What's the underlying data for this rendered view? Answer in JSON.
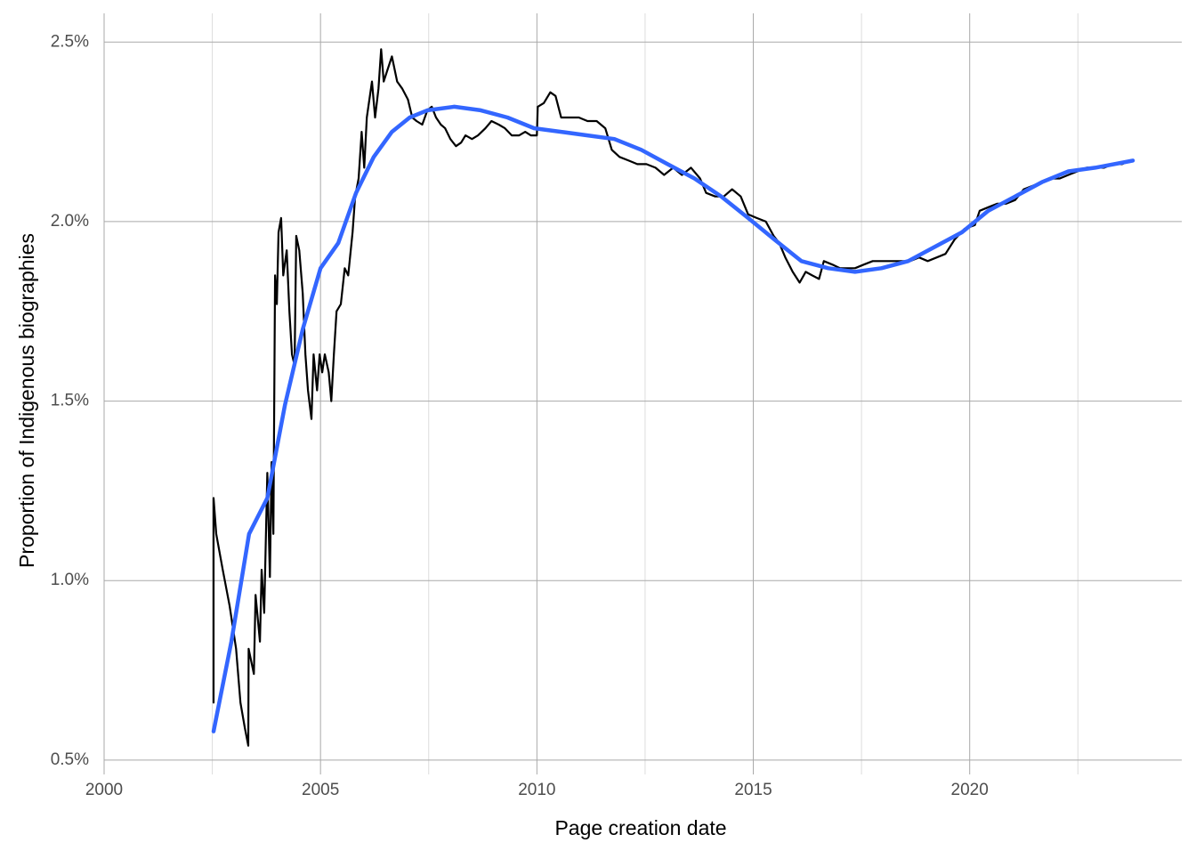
{
  "chart_data": {
    "type": "line",
    "x_label": "Page creation date",
    "y_label": "Proportion of Indigenous biographies",
    "xlim": [
      2000,
      2024.9
    ],
    "ylim": [
      0.46,
      2.58
    ],
    "xticks": [
      2000,
      2005,
      2010,
      2015,
      2020
    ],
    "xminorticks": [
      2002.5,
      2007.5,
      2012.5,
      2017.5,
      2022.5
    ],
    "yticks": [
      {
        "value": 0.5,
        "label": "0.5%"
      },
      {
        "value": 1.0,
        "label": "1.0%"
      },
      {
        "value": 1.5,
        "label": "1.5%"
      },
      {
        "value": 2.0,
        "label": "2.0%"
      },
      {
        "value": 2.5,
        "label": "2.5%"
      }
    ],
    "grid": true,
    "series": [
      {
        "color": "#000000",
        "x": [
          2002.53,
          2002.53,
          2002.59,
          2002.74,
          2002.9,
          2003.05,
          2003.15,
          2003.25,
          2003.33,
          2003.34,
          2003.46,
          2003.5,
          2003.6,
          2003.64,
          2003.7,
          2003.77,
          2003.83,
          2003.87,
          2003.91,
          2003.95,
          2003.99,
          2004.03,
          2004.09,
          2004.14,
          2004.22,
          2004.28,
          2004.34,
          2004.4,
          2004.44,
          2004.51,
          2004.59,
          2004.65,
          2004.71,
          2004.79,
          2004.84,
          2004.92,
          2004.98,
          2005.04,
          2005.1,
          2005.19,
          2005.25,
          2005.31,
          2005.37,
          2005.47,
          2005.56,
          2005.64,
          2005.74,
          2005.8,
          2005.88,
          2005.95,
          2006.01,
          2006.07,
          2006.13,
          2006.19,
          2006.26,
          2006.34,
          2006.4,
          2006.46,
          2006.54,
          2006.65,
          2006.77,
          2006.89,
          2007.02,
          2007.12,
          2007.22,
          2007.35,
          2007.47,
          2007.57,
          2007.67,
          2007.78,
          2007.88,
          2008.0,
          2008.13,
          2008.25,
          2008.35,
          2008.5,
          2008.64,
          2008.81,
          2008.95,
          2009.12,
          2009.26,
          2009.42,
          2009.59,
          2009.73,
          2009.86,
          2010.0,
          2010.02,
          2010.16,
          2010.31,
          2010.43,
          2010.56,
          2010.76,
          2010.97,
          2011.17,
          2011.38,
          2011.58,
          2011.73,
          2011.91,
          2012.12,
          2012.32,
          2012.53,
          2012.74,
          2012.94,
          2013.15,
          2013.35,
          2013.56,
          2013.77,
          2013.91,
          2014.12,
          2014.32,
          2014.51,
          2014.71,
          2014.88,
          2015.08,
          2015.29,
          2015.47,
          2015.6,
          2015.74,
          2015.91,
          2016.07,
          2016.21,
          2016.36,
          2016.52,
          2016.63,
          2016.83,
          2017.0,
          2017.18,
          2017.35,
          2017.55,
          2017.76,
          2018.0,
          2018.21,
          2018.42,
          2018.62,
          2018.83,
          2019.03,
          2019.24,
          2019.44,
          2019.65,
          2019.88,
          2020.12,
          2020.23,
          2020.43,
          2020.64,
          2020.84,
          2021.05,
          2021.25,
          2021.46,
          2021.67,
          2021.87,
          2022.08,
          2022.28,
          2022.49,
          2022.7,
          2022.9,
          2023.11,
          2023.31,
          2023.52,
          2023.72
        ],
        "values": [
          0.66,
          1.23,
          1.13,
          1.03,
          0.93,
          0.81,
          0.66,
          0.59,
          0.54,
          0.81,
          0.74,
          0.96,
          0.83,
          1.03,
          0.91,
          1.3,
          1.01,
          1.33,
          1.13,
          1.85,
          1.77,
          1.97,
          2.01,
          1.85,
          1.92,
          1.75,
          1.63,
          1.6,
          1.96,
          1.92,
          1.8,
          1.63,
          1.53,
          1.45,
          1.63,
          1.53,
          1.63,
          1.58,
          1.63,
          1.58,
          1.5,
          1.63,
          1.75,
          1.77,
          1.87,
          1.85,
          1.97,
          2.07,
          2.12,
          2.25,
          2.15,
          2.29,
          2.34,
          2.39,
          2.29,
          2.37,
          2.48,
          2.39,
          2.42,
          2.46,
          2.39,
          2.37,
          2.34,
          2.29,
          2.28,
          2.27,
          2.31,
          2.32,
          2.29,
          2.27,
          2.26,
          2.23,
          2.21,
          2.22,
          2.24,
          2.23,
          2.24,
          2.26,
          2.28,
          2.27,
          2.26,
          2.24,
          2.24,
          2.25,
          2.24,
          2.24,
          2.32,
          2.33,
          2.36,
          2.35,
          2.29,
          2.29,
          2.29,
          2.28,
          2.28,
          2.26,
          2.2,
          2.18,
          2.17,
          2.16,
          2.16,
          2.15,
          2.13,
          2.15,
          2.13,
          2.15,
          2.12,
          2.08,
          2.07,
          2.07,
          2.09,
          2.07,
          2.02,
          2.01,
          2.0,
          1.96,
          1.94,
          1.9,
          1.86,
          1.83,
          1.86,
          1.85,
          1.84,
          1.89,
          1.88,
          1.87,
          1.87,
          1.87,
          1.88,
          1.89,
          1.89,
          1.89,
          1.89,
          1.89,
          1.9,
          1.89,
          1.9,
          1.91,
          1.95,
          1.98,
          1.99,
          2.03,
          2.04,
          2.05,
          2.05,
          2.06,
          2.09,
          2.1,
          2.11,
          2.12,
          2.12,
          2.13,
          2.14,
          2.15,
          2.15,
          2.15,
          2.16,
          2.16,
          2.17
        ]
      },
      {
        "color": "#3366ff",
        "x": [
          2002.53,
          2002.94,
          2003.35,
          2003.77,
          2004.18,
          2004.59,
          2005.0,
          2005.41,
          2005.82,
          2006.23,
          2006.65,
          2007.06,
          2007.47,
          2008.09,
          2008.7,
          2009.32,
          2009.94,
          2010.56,
          2011.17,
          2011.79,
          2012.41,
          2013.02,
          2013.64,
          2014.26,
          2014.88,
          2015.49,
          2016.11,
          2016.73,
          2017.35,
          2017.96,
          2018.58,
          2019.2,
          2019.82,
          2020.43,
          2021.05,
          2021.67,
          2022.28,
          2022.9,
          2023.77
        ],
        "values": [
          0.58,
          0.83,
          1.13,
          1.23,
          1.49,
          1.7,
          1.87,
          1.94,
          2.08,
          2.18,
          2.25,
          2.29,
          2.31,
          2.32,
          2.31,
          2.29,
          2.26,
          2.25,
          2.24,
          2.23,
          2.2,
          2.16,
          2.12,
          2.07,
          2.01,
          1.95,
          1.89,
          1.87,
          1.86,
          1.87,
          1.89,
          1.93,
          1.97,
          2.03,
          2.07,
          2.11,
          2.14,
          2.15,
          2.17
        ]
      }
    ]
  }
}
